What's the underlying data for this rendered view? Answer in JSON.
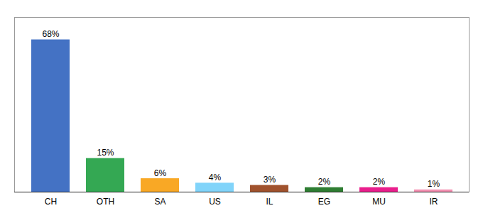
{
  "chart_data": {
    "type": "bar",
    "categories": [
      "CH",
      "OTH",
      "SA",
      "US",
      "IL",
      "EG",
      "MU",
      "IR"
    ],
    "values": [
      68,
      15,
      6,
      4,
      3,
      2,
      2,
      1
    ],
    "value_labels": [
      "68%",
      "15%",
      "6%",
      "4%",
      "3%",
      "2%",
      "2%",
      "1%"
    ],
    "colors": [
      "#4472C4",
      "#34A853",
      "#F9A825",
      "#81D4FA",
      "#A0522D",
      "#2E7D32",
      "#E91E8C",
      "#F48FB1"
    ],
    "ylim": [
      0,
      78
    ],
    "data_labels": true,
    "tick_labels": "x"
  }
}
